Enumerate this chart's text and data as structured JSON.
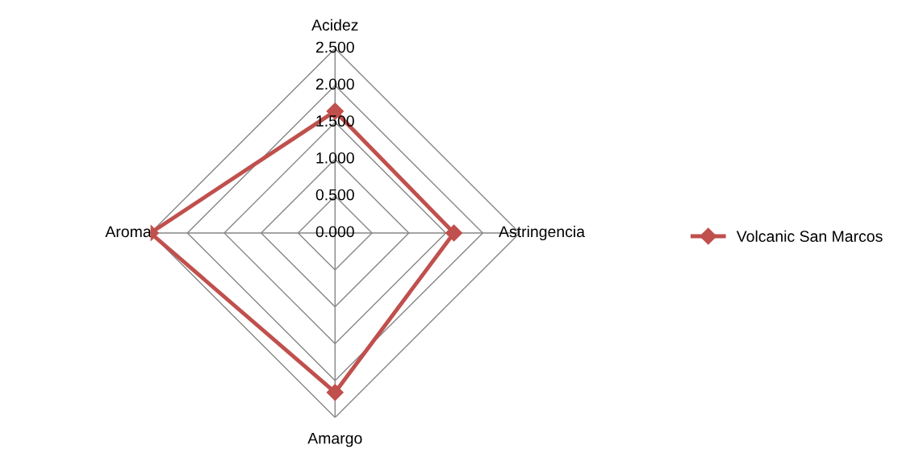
{
  "chart_data": {
    "type": "radar",
    "categories": [
      "Acidez",
      "Astringencia",
      "Amargo",
      "Aroma"
    ],
    "series": [
      {
        "name": "Volcanic San Marcos",
        "color": "#c0504d",
        "values": [
          1.65,
          1.61,
          2.16,
          2.5
        ]
      }
    ],
    "ylim": [
      0,
      2.5
    ],
    "yticks": [
      {
        "value": 0,
        "label": "0.000"
      },
      {
        "value": 0.5,
        "label": "0.500"
      },
      {
        "value": 1.0,
        "label": "1.000"
      },
      {
        "value": 1.5,
        "label": "1.500"
      },
      {
        "value": 2.0,
        "label": "2.000"
      },
      {
        "value": 2.5,
        "label": "2.500"
      }
    ],
    "grid": true,
    "legend": "right",
    "marker": "diamond",
    "line_style": "solid"
  }
}
